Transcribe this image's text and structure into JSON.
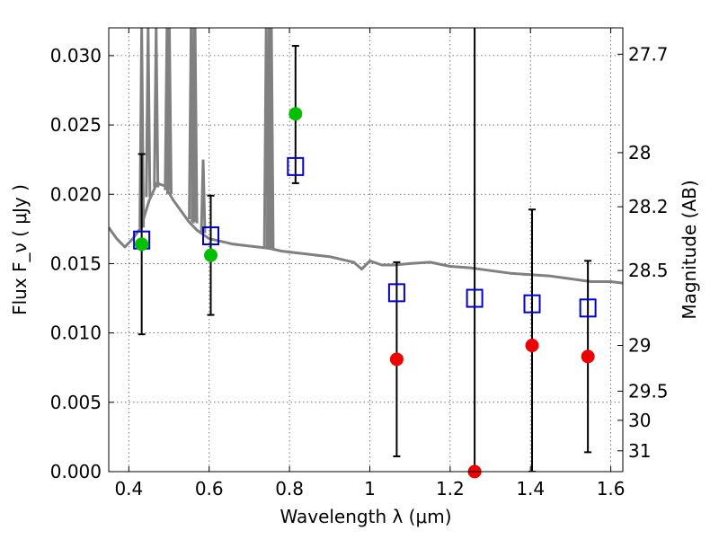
{
  "chart_data": {
    "type": "scatter",
    "xlabel": "Wavelength  λ (μm)",
    "ylabel": "Flux  F_ν  ( μJy )",
    "ylabel_right": "Magnitude (AB)",
    "xlim": [
      0.35,
      1.63
    ],
    "ylim": [
      0.0,
      0.032
    ],
    "grid": true,
    "x_ticks": [
      0.4,
      0.6,
      0.8,
      1.0,
      1.2,
      1.4,
      1.6
    ],
    "x_tick_labels": [
      "0.4",
      "0.6",
      "0.8",
      "1",
      "1.2",
      "1.4",
      "1.6"
    ],
    "y_ticks": [
      0.0,
      0.005,
      0.01,
      0.015,
      0.02,
      0.025,
      0.03
    ],
    "y_tick_labels": [
      "0.000",
      "0.005",
      "0.010",
      "0.015",
      "0.020",
      "0.025",
      "0.030"
    ],
    "right_ticks": [
      {
        "label": "27.7",
        "flux": 0.0301
      },
      {
        "label": "28",
        "flux": 0.023
      },
      {
        "label": "28.2",
        "flux": 0.0191
      },
      {
        "label": "28.5",
        "flux": 0.0145
      },
      {
        "label": "29",
        "flux": 0.0091
      },
      {
        "label": "29.5",
        "flux": 0.0058
      },
      {
        "label": "30",
        "flux": 0.0037
      },
      {
        "label": "31",
        "flux": 0.0015
      }
    ],
    "colors": {
      "model": "#808080",
      "box": "#0000cc",
      "detection": "#00c000",
      "upper_limit": "#ee0000",
      "errorbar": "#000000"
    },
    "model_curve": [
      [
        0.35,
        0.0176
      ],
      [
        0.37,
        0.0168
      ],
      [
        0.39,
        0.0162
      ],
      [
        0.41,
        0.0168
      ],
      [
        0.43,
        0.0176
      ],
      [
        0.45,
        0.0195
      ],
      [
        0.47,
        0.0208
      ],
      [
        0.49,
        0.0206
      ],
      [
        0.51,
        0.0196
      ],
      [
        0.53,
        0.0188
      ],
      [
        0.55,
        0.018
      ],
      [
        0.57,
        0.0174
      ],
      [
        0.6,
        0.0168
      ],
      [
        0.63,
        0.0166
      ],
      [
        0.66,
        0.0164
      ],
      [
        0.69,
        0.0163
      ],
      [
        0.72,
        0.0162
      ],
      [
        0.75,
        0.0161
      ],
      [
        0.78,
        0.0159
      ],
      [
        0.81,
        0.0158
      ],
      [
        0.84,
        0.0157
      ],
      [
        0.87,
        0.0156
      ],
      [
        0.9,
        0.0155
      ],
      [
        0.93,
        0.0153
      ],
      [
        0.96,
        0.0151
      ],
      [
        0.98,
        0.0146
      ],
      [
        1.0,
        0.0152
      ],
      [
        1.03,
        0.0149
      ],
      [
        1.06,
        0.0149
      ],
      [
        1.1,
        0.015
      ],
      [
        1.15,
        0.0151
      ],
      [
        1.2,
        0.0148
      ],
      [
        1.25,
        0.0147
      ],
      [
        1.3,
        0.0145
      ],
      [
        1.35,
        0.0143
      ],
      [
        1.4,
        0.0142
      ],
      [
        1.45,
        0.0141
      ],
      [
        1.5,
        0.0139
      ],
      [
        1.55,
        0.0137
      ],
      [
        1.6,
        0.0137
      ],
      [
        1.63,
        0.0136
      ]
    ],
    "emission_lines": [
      {
        "x": 0.432,
        "peak": 0.032,
        "base": 0.0176
      },
      {
        "x": 0.448,
        "peak": 0.032,
        "base": 0.0198
      },
      {
        "x": 0.468,
        "peak": 0.032,
        "base": 0.0205
      },
      {
        "x": 0.495,
        "peak": 0.032,
        "base": 0.0203
      },
      {
        "x": 0.501,
        "peak": 0.032,
        "base": 0.02
      },
      {
        "x": 0.555,
        "peak": 0.032,
        "base": 0.0182
      },
      {
        "x": 0.562,
        "peak": 0.032,
        "base": 0.018
      },
      {
        "x": 0.565,
        "peak": 0.032,
        "base": 0.0179
      },
      {
        "x": 0.585,
        "peak": 0.0225,
        "base": 0.0172
      },
      {
        "x": 0.742,
        "peak": 0.032,
        "base": 0.0161
      },
      {
        "x": 0.749,
        "peak": 0.032,
        "base": 0.0161
      },
      {
        "x": 0.755,
        "peak": 0.032,
        "base": 0.016
      }
    ],
    "model_boxes": [
      {
        "x": 0.432,
        "y": 0.0167
      },
      {
        "x": 0.604,
        "y": 0.017
      },
      {
        "x": 0.815,
        "y": 0.022
      },
      {
        "x": 1.067,
        "y": 0.0129
      },
      {
        "x": 1.261,
        "y": 0.0125
      },
      {
        "x": 1.404,
        "y": 0.0121
      },
      {
        "x": 1.543,
        "y": 0.0118
      }
    ],
    "observations": [
      {
        "x": 0.432,
        "y": 0.0164,
        "yerr_low": 0.0099,
        "yerr_high": 0.0229,
        "kind": "detection"
      },
      {
        "x": 0.604,
        "y": 0.0156,
        "yerr_low": 0.0113,
        "yerr_high": 0.0199,
        "kind": "detection"
      },
      {
        "x": 0.815,
        "y": 0.0258,
        "yerr_low": 0.0208,
        "yerr_high": 0.0307,
        "kind": "detection"
      },
      {
        "x": 1.067,
        "y": 0.0081,
        "yerr_low": 0.0011,
        "yerr_high": 0.0151,
        "kind": "upper_limit"
      },
      {
        "x": 1.261,
        "y": 0.0,
        "yerr_low": 0.0,
        "yerr_high": 0.0325,
        "kind": "upper_limit"
      },
      {
        "x": 1.404,
        "y": 0.0091,
        "yerr_low": 0.0,
        "yerr_high": 0.0189,
        "kind": "upper_limit"
      },
      {
        "x": 1.543,
        "y": 0.0083,
        "yerr_low": 0.0014,
        "yerr_high": 0.0152,
        "kind": "upper_limit"
      }
    ]
  }
}
